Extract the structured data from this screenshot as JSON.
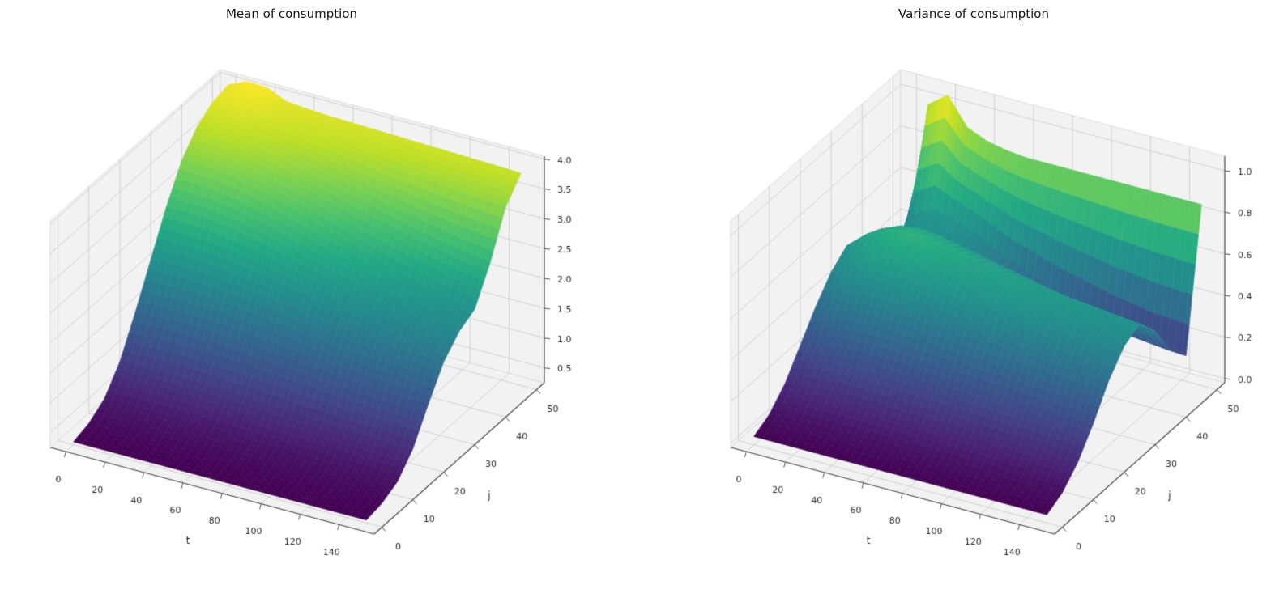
{
  "figure": {
    "background": "#ffffff",
    "text_color": "#262626",
    "pane_color": "#f2f2f2",
    "pane_edge_color": "#dcdcdc",
    "grid_color": "#d2d2d2",
    "spine_color": "#4d4d4d"
  },
  "colormap": {
    "name": "viridis",
    "stops": [
      "#440154",
      "#482475",
      "#414487",
      "#355F8D",
      "#2A788E",
      "#21918C",
      "#22A884",
      "#44BF70",
      "#7AD151",
      "#BDDF26",
      "#FDE725"
    ]
  },
  "plots": [
    {
      "title": "Mean of consumption",
      "xlabel": "t",
      "ylabel": "j",
      "x_ticks": [
        0,
        20,
        40,
        60,
        80,
        100,
        120,
        140
      ],
      "y_ticks": [
        0,
        10,
        20,
        30,
        40,
        50
      ],
      "z_ticks": [
        "0.5",
        "1.0",
        "1.5",
        "2.0",
        "2.5",
        "3.0",
        "3.5",
        "4.0"
      ]
    },
    {
      "title": "Variance of consumption",
      "xlabel": "t",
      "ylabel": "j",
      "x_ticks": [
        0,
        20,
        40,
        60,
        80,
        100,
        120,
        140
      ],
      "y_ticks": [
        0,
        10,
        20,
        30,
        40,
        50
      ],
      "z_ticks": [
        "0.0",
        "0.2",
        "0.4",
        "0.6",
        "0.8",
        "1.0"
      ]
    }
  ],
  "chart_data": [
    {
      "type": "surface",
      "title": "Mean of consumption",
      "xlabel": "t",
      "ylabel": "j",
      "colormap": "viridis",
      "x_range": [
        -8,
        158
      ],
      "y_range": [
        -2.5,
        52.5
      ],
      "z_range": [
        0.25,
        4.05
      ],
      "x": [
        0,
        10,
        20,
        30,
        40,
        50,
        60,
        70,
        80,
        90,
        100,
        110,
        120,
        130,
        140,
        150
      ],
      "y": [
        0,
        5,
        10,
        15,
        20,
        25,
        30,
        35,
        40,
        45,
        50
      ],
      "z": [
        [
          0.3,
          0.38,
          0.56,
          0.95,
          1.55,
          2.2,
          2.85,
          3.4,
          3.74,
          3.92,
          3.98
        ],
        [
          0.3,
          0.38,
          0.57,
          0.97,
          1.57,
          2.22,
          2.86,
          3.41,
          3.75,
          3.95,
          4.12
        ],
        [
          0.3,
          0.38,
          0.57,
          0.97,
          1.58,
          2.22,
          2.84,
          3.38,
          3.72,
          3.92,
          4.1
        ],
        [
          0.3,
          0.38,
          0.57,
          0.97,
          1.58,
          2.2,
          2.8,
          3.32,
          3.66,
          3.87,
          3.96
        ],
        [
          0.3,
          0.38,
          0.57,
          0.96,
          1.57,
          2.17,
          2.74,
          3.24,
          3.59,
          3.83,
          3.93
        ],
        [
          0.3,
          0.38,
          0.56,
          0.95,
          1.55,
          2.13,
          2.66,
          3.15,
          3.52,
          3.79,
          3.91
        ],
        [
          0.3,
          0.37,
          0.55,
          0.93,
          1.52,
          2.09,
          2.58,
          3.05,
          3.44,
          3.75,
          3.9
        ],
        [
          0.3,
          0.37,
          0.54,
          0.91,
          1.49,
          2.04,
          2.5,
          2.94,
          3.36,
          3.71,
          3.89
        ],
        [
          0.3,
          0.37,
          0.53,
          0.89,
          1.46,
          1.99,
          2.42,
          2.83,
          3.27,
          3.67,
          3.88
        ],
        [
          0.3,
          0.36,
          0.52,
          0.87,
          1.43,
          1.95,
          2.35,
          2.72,
          3.18,
          3.63,
          3.87
        ],
        [
          0.3,
          0.36,
          0.51,
          0.85,
          1.4,
          1.91,
          2.28,
          2.62,
          3.1,
          3.6,
          3.86
        ],
        [
          0.3,
          0.36,
          0.5,
          0.84,
          1.38,
          1.88,
          2.22,
          2.52,
          3.02,
          3.57,
          3.85
        ],
        [
          0.3,
          0.36,
          0.5,
          0.82,
          1.36,
          1.85,
          2.17,
          2.43,
          2.95,
          3.54,
          3.84
        ],
        [
          0.3,
          0.35,
          0.49,
          0.81,
          1.34,
          1.83,
          2.13,
          2.35,
          2.88,
          3.51,
          3.83
        ],
        [
          0.3,
          0.35,
          0.49,
          0.8,
          1.33,
          1.81,
          2.1,
          2.28,
          2.82,
          3.49,
          3.82
        ],
        [
          0.3,
          0.35,
          0.48,
          0.8,
          1.32,
          1.8,
          2.08,
          2.22,
          2.77,
          3.47,
          3.81
        ]
      ]
    },
    {
      "type": "surface",
      "title": "Variance of consumption",
      "xlabel": "t",
      "ylabel": "j",
      "colormap": "viridis",
      "x_range": [
        -8,
        158
      ],
      "y_range": [
        -2.5,
        52.5
      ],
      "z_range": [
        -0.02,
        1.07
      ],
      "x": [
        0,
        10,
        20,
        30,
        40,
        50,
        60,
        70,
        80,
        90,
        100,
        110,
        120,
        130,
        140,
        150
      ],
      "y": [
        0,
        5,
        10,
        15,
        20,
        25,
        30,
        35,
        40,
        45,
        50
      ],
      "z": [
        [
          0.02,
          0.06,
          0.14,
          0.26,
          0.38,
          0.48,
          0.54,
          0.5,
          0.41,
          0.32,
          0.26
        ],
        [
          0.02,
          0.07,
          0.16,
          0.29,
          0.43,
          0.55,
          0.62,
          0.58,
          0.48,
          0.52,
          0.98
        ],
        [
          0.02,
          0.07,
          0.17,
          0.3,
          0.45,
          0.58,
          0.66,
          0.62,
          0.53,
          0.57,
          1.05
        ],
        [
          0.02,
          0.07,
          0.17,
          0.31,
          0.46,
          0.59,
          0.68,
          0.63,
          0.53,
          0.55,
          0.92
        ],
        [
          0.02,
          0.07,
          0.17,
          0.31,
          0.46,
          0.58,
          0.67,
          0.62,
          0.51,
          0.52,
          0.88
        ],
        [
          0.02,
          0.07,
          0.17,
          0.3,
          0.45,
          0.57,
          0.65,
          0.6,
          0.48,
          0.47,
          0.86
        ],
        [
          0.02,
          0.07,
          0.16,
          0.3,
          0.44,
          0.56,
          0.64,
          0.58,
          0.45,
          0.42,
          0.85
        ],
        [
          0.02,
          0.07,
          0.16,
          0.29,
          0.44,
          0.55,
          0.62,
          0.56,
          0.42,
          0.38,
          0.85
        ],
        [
          0.02,
          0.07,
          0.16,
          0.29,
          0.43,
          0.55,
          0.61,
          0.54,
          0.39,
          0.34,
          0.85
        ],
        [
          0.02,
          0.07,
          0.16,
          0.28,
          0.43,
          0.54,
          0.6,
          0.52,
          0.37,
          0.31,
          0.85
        ],
        [
          0.02,
          0.07,
          0.15,
          0.28,
          0.42,
          0.53,
          0.59,
          0.5,
          0.35,
          0.28,
          0.85
        ],
        [
          0.02,
          0.07,
          0.15,
          0.27,
          0.42,
          0.53,
          0.58,
          0.48,
          0.33,
          0.25,
          0.85
        ],
        [
          0.02,
          0.06,
          0.15,
          0.27,
          0.41,
          0.52,
          0.57,
          0.47,
          0.31,
          0.23,
          0.85
        ],
        [
          0.02,
          0.06,
          0.15,
          0.26,
          0.41,
          0.51,
          0.56,
          0.46,
          0.3,
          0.21,
          0.85
        ],
        [
          0.02,
          0.06,
          0.14,
          0.26,
          0.4,
          0.51,
          0.55,
          0.45,
          0.29,
          0.2,
          0.85
        ],
        [
          0.02,
          0.06,
          0.14,
          0.26,
          0.4,
          0.5,
          0.54,
          0.44,
          0.28,
          0.19,
          0.85
        ]
      ]
    }
  ]
}
